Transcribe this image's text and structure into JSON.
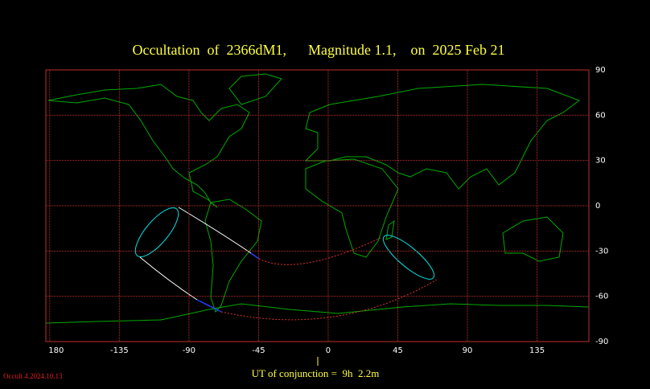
{
  "title": "Occultation  of  2366dM1,      Magnitude 1.1,    on  2025 Feb 21",
  "map": {
    "xlim": [
      -182.5,
      168.5
    ],
    "ylim": [
      -90,
      90
    ],
    "xticks": [
      {
        "value": -180,
        "label": "180"
      },
      -135,
      -90,
      -45,
      0,
      45,
      90,
      135
    ],
    "yticks": [
      90,
      60,
      30,
      0,
      -30,
      -60,
      -90
    ]
  },
  "footer": {
    "conjunction": "UT of conjunction =  9h  2.2m",
    "version": "Occult 4.2024.10.13"
  }
}
